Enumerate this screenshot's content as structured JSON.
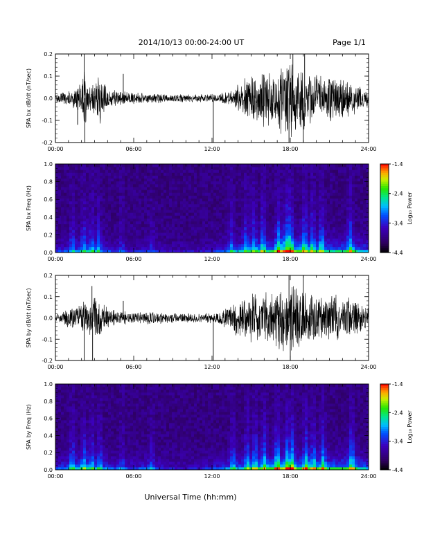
{
  "header": {
    "title": "2014/10/13  00:00-24:00 UT",
    "page": "Page 1/1"
  },
  "xlabel": "Universal Time (hh:mm)",
  "chart_data": [
    {
      "type": "line",
      "ylabel": "SPA bx dB/dt (nT/sec)",
      "xlim": [
        0,
        24
      ],
      "ylim": [
        -0.2,
        0.2
      ],
      "x_ticks": [
        "00:00",
        "06:00",
        "12:00",
        "18:00",
        "24:00"
      ],
      "y_ticks": [
        "0.2",
        "0.1",
        "0.0",
        "-0.1",
        "-0.2"
      ],
      "envelope": {
        "hours": [
          0,
          0.5,
          1,
          1.5,
          2,
          2.2,
          2.5,
          3,
          3.5,
          4,
          4.5,
          5,
          5.5,
          6,
          7,
          8,
          9,
          10,
          11,
          12,
          12.5,
          13,
          13.5,
          14,
          14.5,
          15,
          15.5,
          16,
          16.5,
          17,
          17.5,
          18,
          18.5,
          19,
          19.5,
          20,
          20.5,
          21,
          21.5,
          22,
          22.5,
          23,
          23.5,
          24
        ],
        "amplitude": [
          0.02,
          0.03,
          0.04,
          0.05,
          0.09,
          0.2,
          0.06,
          0.08,
          0.14,
          0.05,
          0.04,
          0.04,
          0.03,
          0.03,
          0.025,
          0.025,
          0.02,
          0.02,
          0.02,
          0.02,
          0.02,
          0.03,
          0.04,
          0.07,
          0.09,
          0.11,
          0.12,
          0.14,
          0.12,
          0.15,
          0.18,
          0.2,
          0.16,
          0.18,
          0.13,
          0.12,
          0.11,
          0.12,
          0.1,
          0.1,
          0.09,
          0.08,
          0.06,
          0.04
        ]
      },
      "spikes": [
        {
          "t": 2.2,
          "v": 0.2
        },
        {
          "t": 2.25,
          "v": -0.2
        },
        {
          "t": 1.7,
          "v": -0.12
        },
        {
          "t": 5.2,
          "v": 0.11
        },
        {
          "t": 12.1,
          "v": -0.2
        },
        {
          "t": 17.9,
          "v": -0.2
        },
        {
          "t": 18.2,
          "v": 0.2
        },
        {
          "t": 19.0,
          "v": -0.2
        },
        {
          "t": 19.1,
          "v": 0.2
        }
      ]
    },
    {
      "type": "heatmap",
      "ylabel": "SPA bx Freq (Hz)",
      "colorbar_label": "Log₁₀ Power",
      "colorbar_ticks": [
        "-1.4",
        "-2.4",
        "-3.4",
        "-4.4"
      ],
      "clim": [
        -4.4,
        -1.4
      ],
      "xlim": [
        0,
        24
      ],
      "ylim": [
        0,
        1.0
      ],
      "x_ticks": [
        "00:00",
        "06:00",
        "12:00",
        "18:00",
        "24:00"
      ],
      "y_ticks": [
        "1.0",
        "0.8",
        "0.6",
        "0.4",
        "0.2",
        "0.0"
      ],
      "activity": {
        "hours": [
          0,
          1,
          2,
          3,
          4,
          5,
          6,
          7,
          8,
          9,
          10,
          11,
          12,
          13,
          14,
          15,
          16,
          17,
          18,
          19,
          20,
          21,
          22,
          23,
          24
        ],
        "level": [
          0.25,
          0.35,
          0.45,
          0.45,
          0.3,
          0.25,
          0.2,
          0.25,
          0.2,
          0.15,
          0.15,
          0.15,
          0.25,
          0.35,
          0.5,
          0.55,
          0.6,
          0.7,
          0.85,
          0.7,
          0.6,
          0.6,
          0.65,
          0.6,
          0.45
        ]
      },
      "bursts_hours": [
        1.3,
        2.2,
        2.8,
        3.3,
        5.1,
        7.4,
        13.5,
        14.6,
        15.2,
        15.9,
        17.1,
        17.7,
        18.0,
        19.1,
        19.7,
        20.4,
        22.6
      ]
    },
    {
      "type": "line",
      "ylabel": "SPA by dB/dt (nT/sec)",
      "xlim": [
        0,
        24
      ],
      "ylim": [
        -0.2,
        0.2
      ],
      "x_ticks": [
        "00:00",
        "06:00",
        "12:00",
        "18:00",
        "24:00"
      ],
      "y_ticks": [
        "0.2",
        "0.1",
        "0.0",
        "-0.1",
        "-0.2"
      ],
      "envelope": {
        "hours": [
          0,
          0.5,
          1,
          1.5,
          2,
          2.2,
          2.5,
          3,
          3.5,
          4,
          4.5,
          5,
          5.5,
          6,
          7,
          8,
          9,
          10,
          11,
          12,
          12.5,
          13,
          13.5,
          14,
          14.5,
          15,
          15.5,
          16,
          16.5,
          17,
          17.5,
          18,
          18.5,
          19,
          19.5,
          20,
          20.5,
          21,
          21.5,
          22,
          22.5,
          23,
          23.5,
          24
        ],
        "amplitude": [
          0.02,
          0.03,
          0.05,
          0.06,
          0.08,
          0.12,
          0.08,
          0.12,
          0.08,
          0.05,
          0.04,
          0.04,
          0.03,
          0.03,
          0.03,
          0.03,
          0.025,
          0.025,
          0.025,
          0.025,
          0.03,
          0.05,
          0.07,
          0.09,
          0.11,
          0.12,
          0.13,
          0.14,
          0.15,
          0.16,
          0.18,
          0.2,
          0.17,
          0.15,
          0.13,
          0.13,
          0.12,
          0.11,
          0.12,
          0.1,
          0.1,
          0.09,
          0.07,
          0.05
        ]
      },
      "spikes": [
        {
          "t": 2.2,
          "v": -0.2
        },
        {
          "t": 2.8,
          "v": 0.15
        },
        {
          "t": 2.85,
          "v": -0.2
        },
        {
          "t": 5.2,
          "v": 0.08
        },
        {
          "t": 12.1,
          "v": -0.2
        },
        {
          "t": 17.9,
          "v": 0.2
        },
        {
          "t": 18.0,
          "v": -0.2
        },
        {
          "t": 19.0,
          "v": 0.2
        }
      ]
    },
    {
      "type": "heatmap",
      "ylabel": "SPA by Freq (Hz)",
      "colorbar_label": "Log₁₀ Power",
      "colorbar_ticks": [
        "-1.4",
        "-2.4",
        "-3.4",
        "-4.4"
      ],
      "clim": [
        -4.4,
        -1.4
      ],
      "xlim": [
        0,
        24
      ],
      "ylim": [
        0,
        1.0
      ],
      "x_ticks": [
        "00:00",
        "06:00",
        "12:00",
        "18:00",
        "24:00"
      ],
      "y_ticks": [
        "1.0",
        "0.8",
        "0.6",
        "0.4",
        "0.2",
        "0.0"
      ],
      "activity": {
        "hours": [
          0,
          1,
          2,
          3,
          4,
          5,
          6,
          7,
          8,
          9,
          10,
          11,
          12,
          13,
          14,
          15,
          16,
          17,
          18,
          19,
          20,
          21,
          22,
          23,
          24
        ],
        "level": [
          0.35,
          0.45,
          0.55,
          0.5,
          0.4,
          0.3,
          0.3,
          0.35,
          0.25,
          0.2,
          0.2,
          0.2,
          0.3,
          0.4,
          0.5,
          0.6,
          0.65,
          0.75,
          0.85,
          0.75,
          0.65,
          0.65,
          0.7,
          0.65,
          0.5
        ]
      },
      "bursts_hours": [
        1.3,
        2.2,
        2.8,
        3.4,
        5.1,
        7.4,
        13.6,
        14.7,
        15.3,
        16.0,
        17.0,
        17.8,
        18.1,
        19.2,
        19.8,
        20.5,
        22.7
      ]
    }
  ]
}
